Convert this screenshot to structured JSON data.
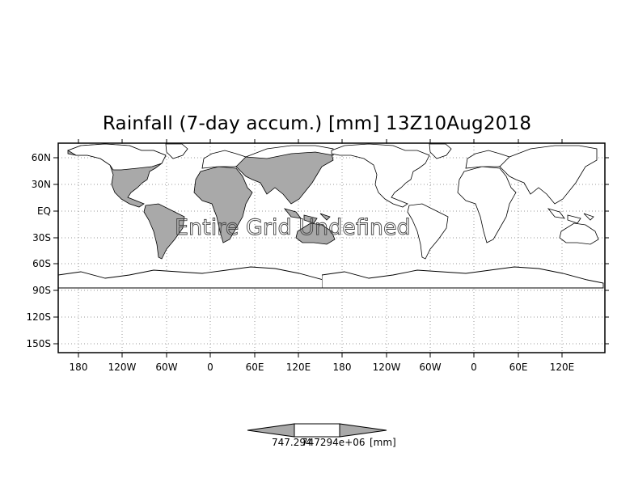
{
  "map": {
    "title": "Rainfall (7-day accum.) [mm] 13Z10Aug2018",
    "overlay_text": "Entire Grid Undefined",
    "lat_labels": [
      "60N",
      "30N",
      "EQ",
      "30S",
      "60S",
      "90S",
      "120S",
      "150S"
    ],
    "lon_labels": [
      "180",
      "120W",
      "60W",
      "0",
      "60E",
      "120E",
      "180",
      "120W",
      "60W",
      "0",
      "60E",
      "120E"
    ],
    "land_shaded_color": "#a9a9a9",
    "frame_color": "#000000",
    "grid_style": "dotted"
  },
  "colorbar": {
    "min_label": "747.294",
    "max_label": "747294e+06",
    "unit_label": "[mm]",
    "left_triangle_color": "#a9a9a9",
    "right_triangle_color": "#a9a9a9",
    "center_color": "#ffffff"
  }
}
